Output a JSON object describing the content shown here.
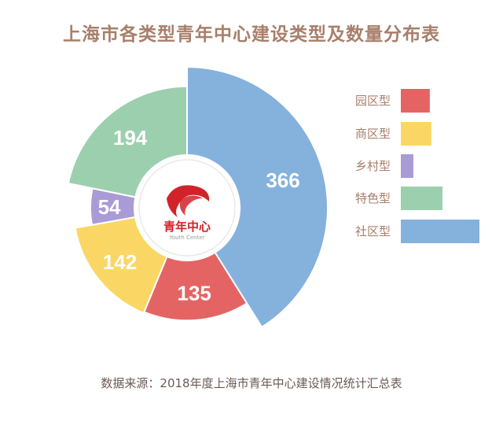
{
  "chart_data": {
    "type": "pie",
    "title": "上海市各类型青年中心建设类型及数量分布表",
    "categories": [
      "园区型",
      "商区型",
      "乡村型",
      "特色型",
      "社区型"
    ],
    "values": [
      135,
      142,
      54,
      194,
      366
    ],
    "colors": [
      "#e46464",
      "#fad765",
      "#a99bd6",
      "#9ccfae",
      "#85b1dd"
    ],
    "legend_position": "right",
    "grid": false
  },
  "center_logo": {
    "text": "青年中心",
    "subtext": "Youth Center",
    "color": "#d2232a"
  },
  "source_note": "数据来源：2018年度上海市青年中心建设情况统计汇总表"
}
